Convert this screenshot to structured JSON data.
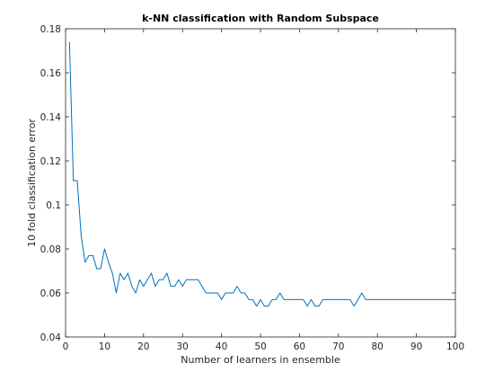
{
  "chart_data": {
    "type": "line",
    "title": "k-NN classification with Random Subspace",
    "xlabel": "Number of learners in ensemble",
    "ylabel": "10 fold classification error",
    "xlim": [
      0,
      100
    ],
    "ylim": [
      0.04,
      0.18
    ],
    "xticks": [
      0,
      10,
      20,
      30,
      40,
      50,
      60,
      70,
      80,
      90,
      100
    ],
    "yticks": [
      0.04,
      0.06,
      0.08,
      0.1,
      0.12,
      0.14,
      0.16,
      0.18
    ],
    "grid": false,
    "legend": "none",
    "line_color": "#0072BD",
    "series": [
      {
        "x": [
          1,
          2,
          3,
          4,
          5,
          6,
          7,
          8,
          9,
          10,
          11,
          12,
          13,
          14,
          15,
          16,
          17,
          18,
          19,
          20,
          21,
          22,
          23,
          24,
          25,
          26,
          27,
          28,
          29,
          30,
          31,
          32,
          33,
          34,
          35,
          36,
          37,
          38,
          39,
          40,
          41,
          42,
          43,
          44,
          45,
          46,
          47,
          48,
          49,
          50,
          51,
          52,
          53,
          54,
          55,
          56,
          57,
          58,
          59,
          60,
          61,
          62,
          63,
          64,
          65,
          66,
          67,
          68,
          69,
          70,
          71,
          72,
          73,
          74,
          75,
          76,
          77,
          78,
          79,
          80,
          81,
          82,
          83,
          84,
          85,
          86,
          87,
          88,
          89,
          90,
          91,
          92,
          93,
          94,
          95,
          96,
          97,
          98,
          99,
          100
        ],
        "values": [
          0.174,
          0.111,
          0.111,
          0.086,
          0.074,
          0.077,
          0.077,
          0.071,
          0.071,
          0.08,
          0.074,
          0.069,
          0.06,
          0.069,
          0.066,
          0.069,
          0.063,
          0.06,
          0.066,
          0.063,
          0.066,
          0.069,
          0.063,
          0.066,
          0.066,
          0.069,
          0.063,
          0.063,
          0.066,
          0.063,
          0.066,
          0.066,
          0.066,
          0.066,
          0.063,
          0.06,
          0.06,
          0.06,
          0.06,
          0.057,
          0.06,
          0.06,
          0.06,
          0.063,
          0.06,
          0.06,
          0.057,
          0.057,
          0.054,
          0.057,
          0.054,
          0.054,
          0.057,
          0.057,
          0.06,
          0.057,
          0.057,
          0.057,
          0.057,
          0.057,
          0.057,
          0.054,
          0.057,
          0.054,
          0.054,
          0.057,
          0.057,
          0.057,
          0.057,
          0.057,
          0.057,
          0.057,
          0.057,
          0.054,
          0.057,
          0.06,
          0.057,
          0.057,
          0.057,
          0.057,
          0.057,
          0.057,
          0.057,
          0.057,
          0.057,
          0.057,
          0.057,
          0.057,
          0.057,
          0.057,
          0.057,
          0.057,
          0.057,
          0.057,
          0.057,
          0.057,
          0.057,
          0.057,
          0.057,
          0.057
        ]
      }
    ]
  }
}
